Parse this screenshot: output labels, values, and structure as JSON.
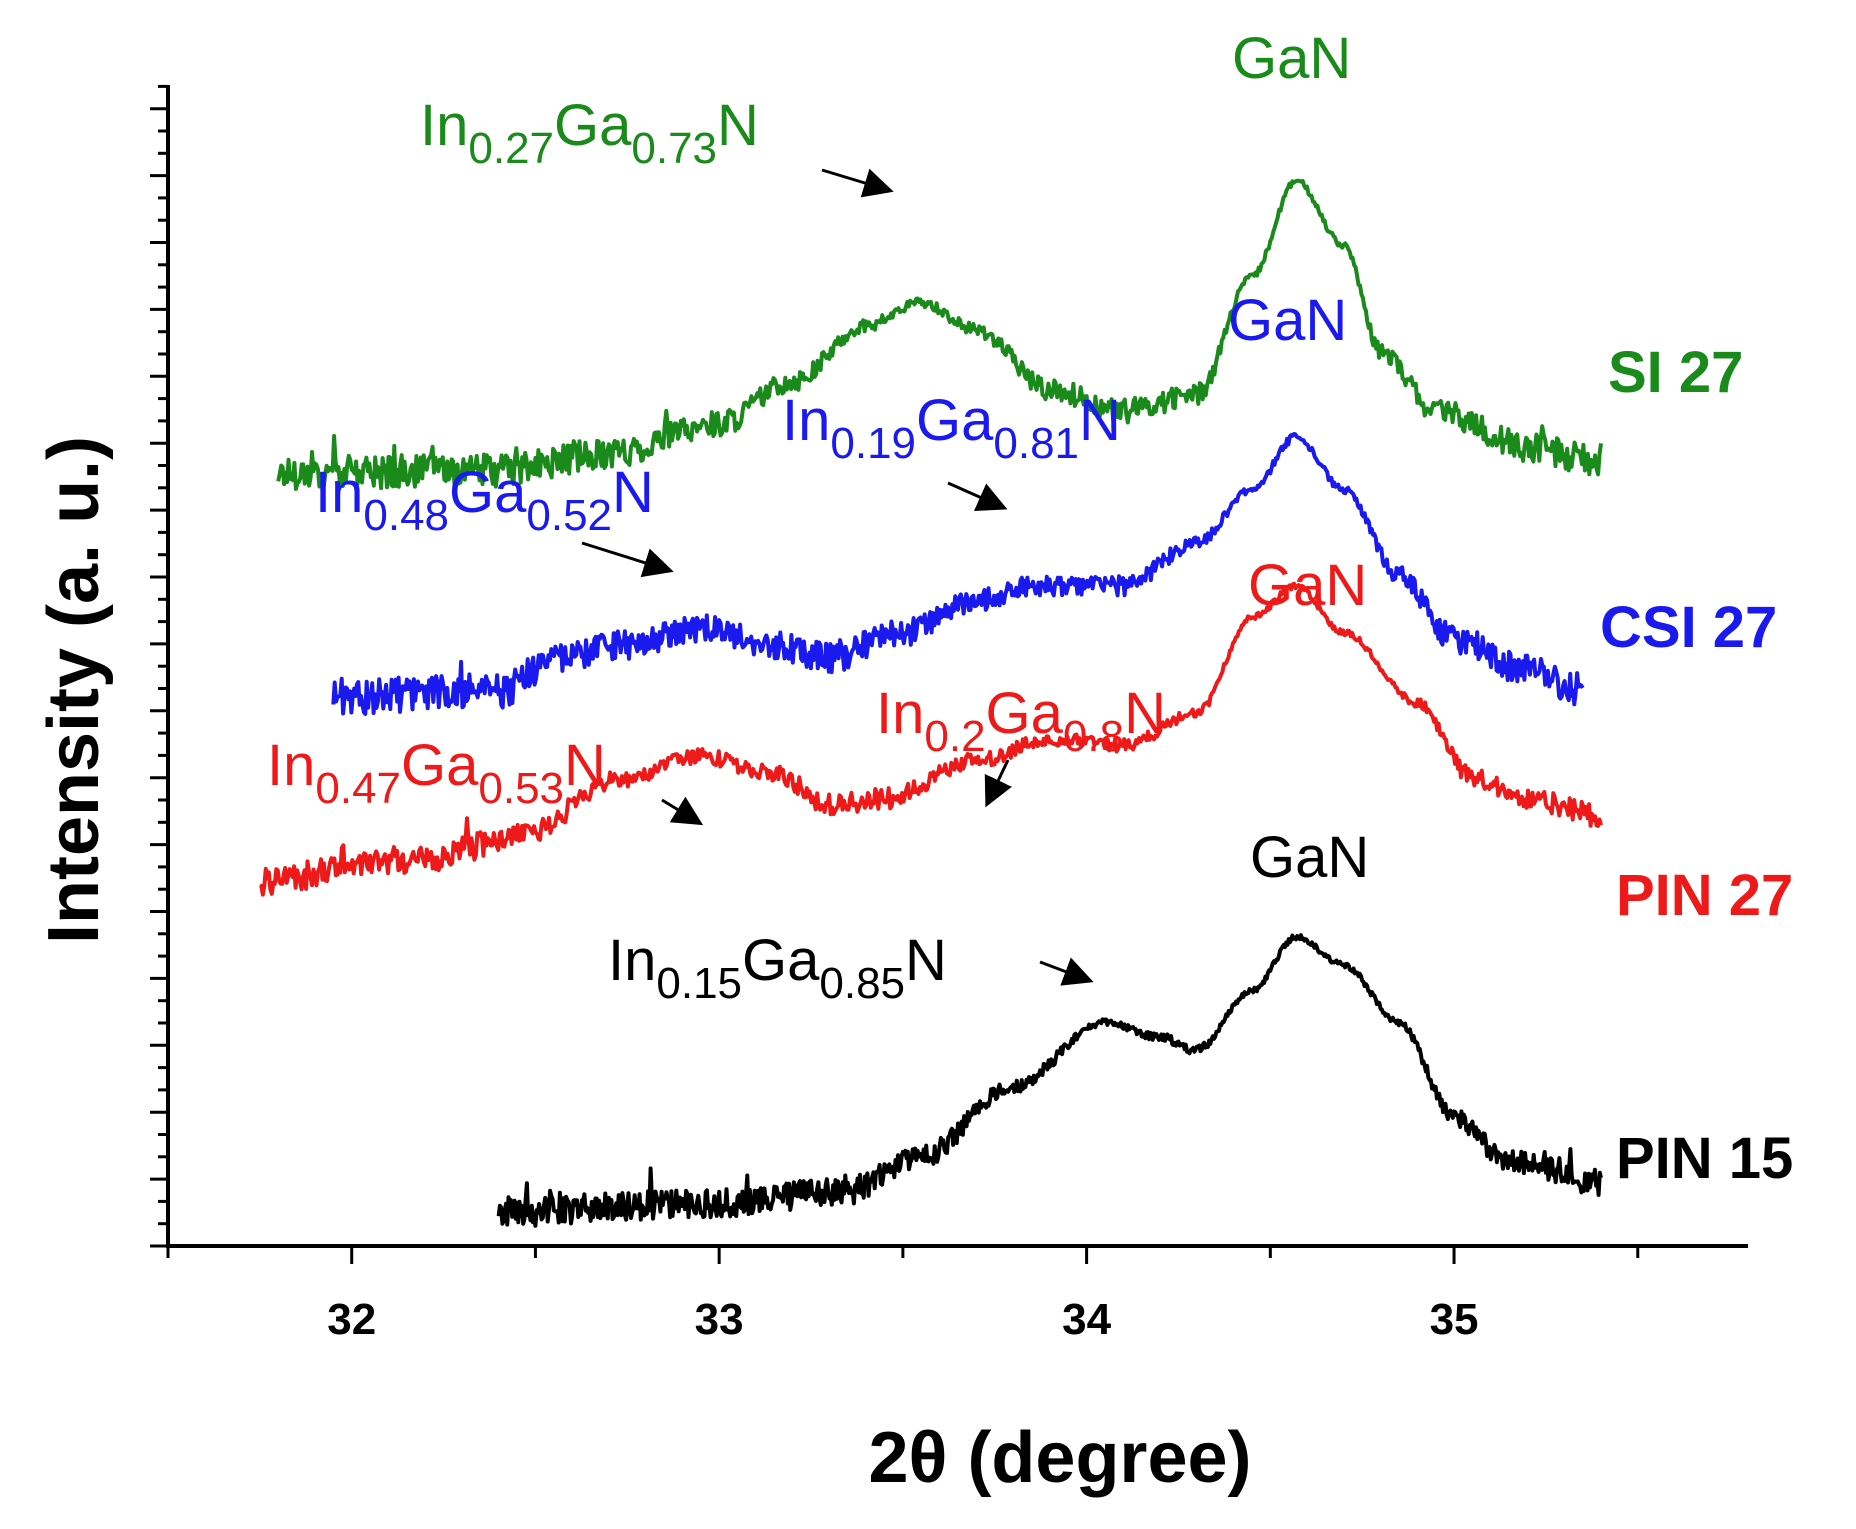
{
  "chart_data": {
    "type": "line",
    "title": "",
    "xlabel": "2θ (degree)",
    "ylabel": "Intensity (a. u.)",
    "xlim": [
      31.5,
      35.8
    ],
    "ylim": [
      0,
      5.45
    ],
    "x_ticks": [
      "32",
      "33",
      "34",
      "35"
    ],
    "x_tick_values": [
      32,
      33,
      34,
      35
    ],
    "y_ticks_shown": false,
    "grid": false,
    "colors": {
      "axis": "#000000",
      "arrow": "#000000"
    },
    "series": [
      {
        "name": "SI 27",
        "color": "#1a8a1a",
        "x_range": [
          31.8,
          35.4
        ],
        "noise": 0.045,
        "baseline": 3.62,
        "points": [
          [
            31.8,
            3.63
          ],
          [
            32.4,
            3.64
          ],
          [
            32.7,
            3.72
          ],
          [
            33.0,
            3.86
          ],
          [
            33.2,
            4.06
          ],
          [
            33.4,
            4.32
          ],
          [
            33.55,
            4.43
          ],
          [
            33.7,
            4.3
          ],
          [
            33.9,
            4.02
          ],
          [
            34.1,
            3.92
          ],
          [
            34.3,
            4.0
          ],
          [
            34.45,
            4.55
          ],
          [
            34.57,
            5.0
          ],
          [
            34.7,
            4.7
          ],
          [
            34.8,
            4.2
          ],
          [
            34.95,
            3.92
          ],
          [
            35.2,
            3.75
          ],
          [
            35.4,
            3.68
          ]
        ]
      },
      {
        "name": "CSI 27",
        "color": "#1a1aee",
        "x_range": [
          31.95,
          35.35
        ],
        "noise": 0.05,
        "baseline": 2.57,
        "points": [
          [
            31.95,
            2.58
          ],
          [
            32.4,
            2.6
          ],
          [
            32.55,
            2.75
          ],
          [
            32.75,
            2.82
          ],
          [
            32.95,
            2.9
          ],
          [
            33.15,
            2.82
          ],
          [
            33.3,
            2.76
          ],
          [
            33.5,
            2.88
          ],
          [
            33.7,
            3.03
          ],
          [
            33.85,
            3.1
          ],
          [
            34.1,
            3.1
          ],
          [
            34.3,
            3.3
          ],
          [
            34.45,
            3.55
          ],
          [
            34.57,
            3.8
          ],
          [
            34.7,
            3.55
          ],
          [
            34.85,
            3.15
          ],
          [
            35.0,
            2.85
          ],
          [
            35.2,
            2.7
          ],
          [
            35.35,
            2.62
          ]
        ]
      },
      {
        "name": "PIN 27",
        "color": "#ee1a1a",
        "x_range": [
          31.75,
          35.4
        ],
        "noise": 0.04,
        "baseline": 1.75,
        "points": [
          [
            31.75,
            1.72
          ],
          [
            32.2,
            1.82
          ],
          [
            32.5,
            1.95
          ],
          [
            32.7,
            2.18
          ],
          [
            32.95,
            2.3
          ],
          [
            33.15,
            2.22
          ],
          [
            33.3,
            2.07
          ],
          [
            33.45,
            2.1
          ],
          [
            33.7,
            2.28
          ],
          [
            33.9,
            2.38
          ],
          [
            34.1,
            2.35
          ],
          [
            34.3,
            2.5
          ],
          [
            34.45,
            2.95
          ],
          [
            34.57,
            3.1
          ],
          [
            34.7,
            2.88
          ],
          [
            34.9,
            2.55
          ],
          [
            35.05,
            2.2
          ],
          [
            35.2,
            2.1
          ],
          [
            35.4,
            2.02
          ]
        ]
      },
      {
        "name": "PIN 15",
        "color": "#000000",
        "x_range": [
          32.4,
          35.4
        ],
        "noise": 0.04,
        "baseline": 0.16,
        "points": [
          [
            32.4,
            0.16
          ],
          [
            33.0,
            0.2
          ],
          [
            33.35,
            0.26
          ],
          [
            33.55,
            0.42
          ],
          [
            33.8,
            0.75
          ],
          [
            34.05,
            1.05
          ],
          [
            34.2,
            0.98
          ],
          [
            34.3,
            0.92
          ],
          [
            34.45,
            1.2
          ],
          [
            34.57,
            1.45
          ],
          [
            34.7,
            1.32
          ],
          [
            34.85,
            1.05
          ],
          [
            35.0,
            0.6
          ],
          [
            35.15,
            0.4
          ],
          [
            35.4,
            0.3
          ]
        ]
      }
    ],
    "annotations": [
      {
        "series": "SI 27",
        "label": "GaN",
        "x": 34.57,
        "y": 5.0
      },
      {
        "series": "SI 27",
        "label": "In0.27Ga0.73N",
        "x": 33.48,
        "y": 4.43
      },
      {
        "series": "CSI 27",
        "label": "GaN",
        "x": 34.57,
        "y": 3.8
      },
      {
        "series": "CSI 27",
        "label": "In0.19Ga0.81N",
        "x": 33.78,
        "y": 3.07
      },
      {
        "series": "CSI 27",
        "label": "In0.48Ga0.52N",
        "x": 32.85,
        "y": 2.83
      },
      {
        "series": "PIN 27",
        "label": "GaN",
        "x": 34.57,
        "y": 3.1
      },
      {
        "series": "PIN 27",
        "label": "In0.2Ga0.8N",
        "x": 33.75,
        "y": 2.32
      },
      {
        "series": "PIN 27",
        "label": "In0.47Ga0.53N",
        "x": 32.95,
        "y": 2.22
      },
      {
        "series": "PIN 15",
        "label": "GaN",
        "x": 34.57,
        "y": 1.45
      },
      {
        "series": "PIN 15",
        "label": "In0.15Ga0.85N",
        "x": 34.0,
        "y": 1.08
      }
    ]
  },
  "labels": {
    "gan_si": "GaN",
    "gan_csi": "GaN",
    "gan_pin27": "GaN",
    "gan_pin15": "GaN",
    "si27_peak": {
      "a": "In",
      "b": "0.27",
      "c": "Ga",
      "d": "0.73",
      "e": "N"
    },
    "csi27_peak1": {
      "a": "In",
      "b": "0.19",
      "c": "Ga",
      "d": "0.81",
      "e": "N"
    },
    "csi27_peak2": {
      "a": "In",
      "b": "0.48",
      "c": "Ga",
      "d": "0.52",
      "e": "N"
    },
    "pin27_peak1": {
      "a": "In",
      "b": "0.2",
      "c": "Ga",
      "d": "0.8",
      "e": "N"
    },
    "pin27_peak2": {
      "a": "In",
      "b": "0.47",
      "c": "Ga",
      "d": "0.53",
      "e": "N"
    },
    "pin15_peak": {
      "a": "In",
      "b": "0.15",
      "c": "Ga",
      "d": "0.85",
      "e": "N"
    }
  }
}
